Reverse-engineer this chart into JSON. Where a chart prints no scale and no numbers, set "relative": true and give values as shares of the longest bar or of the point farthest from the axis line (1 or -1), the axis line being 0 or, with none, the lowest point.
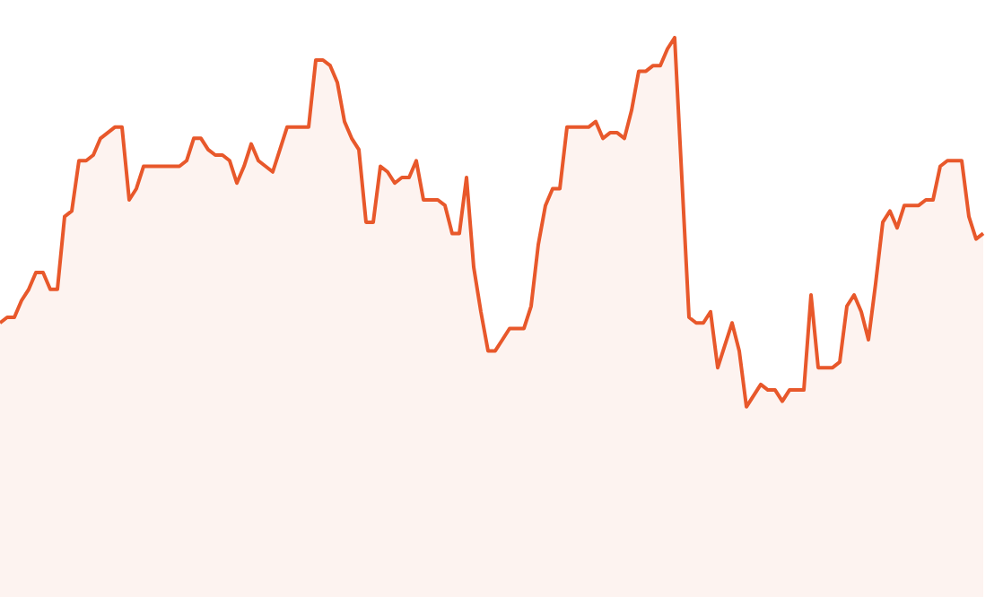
{
  "chart_data": {
    "type": "area",
    "relative": true,
    "color": "#e8582b",
    "categories": [
      null,
      null,
      null,
      null,
      null,
      null,
      null,
      null,
      null,
      null,
      null,
      null,
      null,
      null,
      null,
      null,
      null,
      null,
      null,
      null,
      null,
      null,
      null,
      null,
      null,
      null,
      null,
      null,
      null,
      null,
      null,
      null,
      null,
      null,
      null,
      null,
      null,
      null,
      null,
      null,
      null,
      null,
      null,
      null,
      null,
      null,
      null,
      null,
      null,
      null,
      null,
      null,
      null,
      null,
      null,
      null,
      null,
      null,
      null,
      null,
      null,
      null,
      null,
      null,
      null,
      null,
      null,
      null,
      null,
      null,
      null,
      null,
      null,
      null,
      null,
      null,
      null,
      null,
      null,
      null,
      null,
      null,
      null,
      null,
      null,
      null,
      null,
      null,
      null,
      null,
      null,
      null,
      null,
      null,
      null,
      null,
      null,
      null,
      null,
      null,
      null,
      null,
      null,
      null,
      null,
      null,
      null,
      null,
      null,
      null,
      null,
      null,
      null,
      null,
      null,
      null,
      null,
      null,
      null,
      null,
      null,
      null,
      null,
      null,
      null,
      null,
      null,
      null,
      null,
      null,
      null,
      null,
      null,
      null,
      null,
      null,
      null,
      null
    ],
    "values": [
      0.49,
      0.5,
      0.5,
      0.53,
      0.55,
      0.58,
      0.58,
      0.55,
      0.55,
      0.68,
      0.69,
      0.78,
      0.78,
      0.79,
      0.82,
      0.83,
      0.84,
      0.84,
      0.71,
      0.73,
      0.77,
      0.77,
      0.77,
      0.77,
      0.77,
      0.77,
      0.78,
      0.82,
      0.82,
      0.8,
      0.79,
      0.79,
      0.78,
      0.74,
      0.77,
      0.81,
      0.78,
      0.77,
      0.76,
      0.8,
      0.84,
      0.84,
      0.84,
      0.84,
      0.96,
      0.96,
      0.95,
      0.92,
      0.85,
      0.82,
      0.8,
      0.67,
      0.67,
      0.77,
      0.76,
      0.74,
      0.75,
      0.75,
      0.78,
      0.71,
      0.71,
      0.71,
      0.7,
      0.65,
      0.65,
      0.75,
      0.59,
      0.51,
      0.44,
      0.44,
      0.46,
      0.48,
      0.48,
      0.48,
      0.52,
      0.63,
      0.7,
      0.73,
      0.73,
      0.84,
      0.84,
      0.84,
      0.84,
      0.85,
      0.82,
      0.83,
      0.83,
      0.82,
      0.87,
      0.94,
      0.94,
      0.95,
      0.95,
      0.98,
      1.0,
      0.75,
      0.5,
      0.49,
      0.49,
      0.51,
      0.41,
      0.45,
      0.49,
      0.44,
      0.34,
      0.36,
      0.38,
      0.37,
      0.37,
      0.35,
      0.37,
      0.37,
      0.37,
      0.54,
      0.41,
      0.41,
      0.41,
      0.42,
      0.52,
      0.54,
      0.51,
      0.46,
      0.56,
      0.67,
      0.69,
      0.66,
      0.7,
      0.7,
      0.7,
      0.71,
      0.71,
      0.77,
      0.78,
      0.78,
      0.78,
      0.68,
      0.64,
      0.65
    ]
  }
}
